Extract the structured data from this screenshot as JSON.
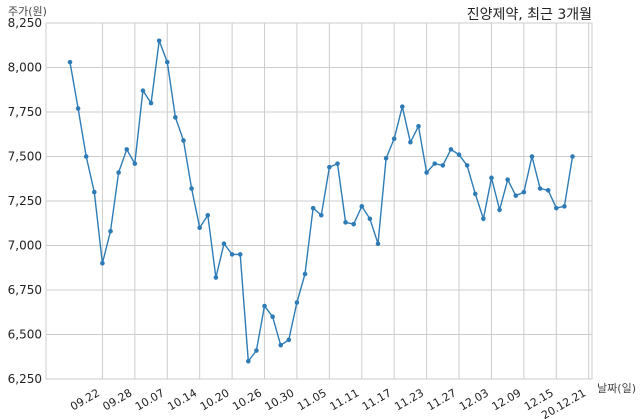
{
  "chart_data": {
    "type": "line",
    "title": "진양제약, 최근 3개월",
    "xlabel": "날짜(일)",
    "ylabel": "주가(원)",
    "ylim": [
      6250,
      8250
    ],
    "yticks": [
      6250,
      6500,
      6750,
      7000,
      7250,
      7500,
      7750,
      8000,
      8250
    ],
    "ytick_labels": [
      "6,250",
      "6,500",
      "6,750",
      "7,000",
      "7,250",
      "7,500",
      "7,750",
      "8,000",
      "8,250"
    ],
    "xtick_labels": [
      "09.22",
      "09.28",
      "10.07",
      "10.14",
      "10.20",
      "10.26",
      "10.30",
      "11.05",
      "11.11",
      "11.17",
      "11.23",
      "11.27",
      "12.03",
      "12.09",
      "12.15",
      "20.12.21"
    ],
    "xtick_positions": [
      4,
      8,
      12,
      16,
      20,
      24,
      28,
      32,
      36,
      40,
      44,
      48,
      52,
      56,
      60,
      64
    ],
    "grid": true,
    "color": "#2e7cb6",
    "series": [
      {
        "values": [
          8030,
          7770,
          7500,
          7300,
          6900,
          7080,
          7410,
          7540,
          7460,
          7870,
          7800,
          8150,
          8030,
          7720,
          7590,
          7320,
          7100,
          7170,
          6820,
          7010,
          6950,
          6950,
          6350,
          6410,
          6660,
          6600,
          6440,
          6470,
          6680,
          6840,
          7210,
          7170,
          7440,
          7460,
          7130,
          7120,
          7220,
          7150,
          7010,
          7490,
          7600,
          7780,
          7580,
          7670,
          7410,
          7460,
          7450,
          7540,
          7510,
          7450,
          7290,
          7150,
          7380,
          7200,
          7370,
          7280,
          7300,
          7500,
          7320,
          7310,
          7210,
          7220,
          7500
        ]
      }
    ]
  }
}
